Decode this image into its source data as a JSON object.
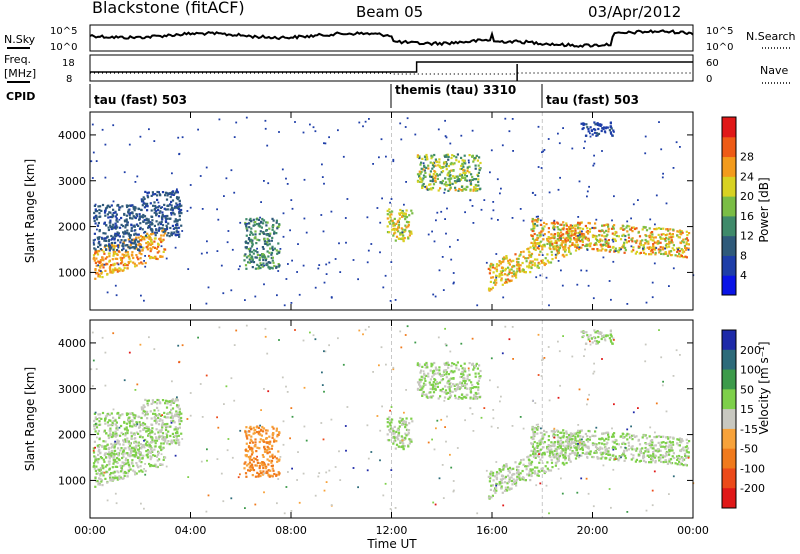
{
  "header": {
    "radar_title": "Blackstone (fitACF)",
    "beam_title": "Beam 05",
    "date_title": "03/Apr/2012"
  },
  "left_labels": {
    "nsky": "N.Sky",
    "freq": "Freq.",
    "freq_unit": "[MHz]",
    "cpid": "CPID"
  },
  "right_labels": {
    "nsearch": "N.Search",
    "nave": "Nave"
  },
  "noise_axis": {
    "left_ticks": [
      "10^5",
      "10^0"
    ],
    "right_ticks": [
      "10^5",
      "10^0"
    ]
  },
  "freq_axis": {
    "left_ticks": [
      "18",
      "8"
    ],
    "right_ticks": [
      "60",
      "0"
    ]
  },
  "cpid_segments": [
    {
      "label": "tau (fast) 503",
      "start": 0.0,
      "end": 12.0
    },
    {
      "label": "themis (tau) 3310",
      "start": 12.0,
      "end": 18.0
    },
    {
      "label": "tau (fast) 503",
      "start": 18.0,
      "end": 24.0
    }
  ],
  "power_colorbar": {
    "label": "Power [dB]",
    "ticks": [
      "4",
      "8",
      "12",
      "16",
      "20",
      "24",
      "28"
    ],
    "colors": [
      "#0a14e6",
      "#1e3ea8",
      "#2f5a7a",
      "#3f8a6a",
      "#7abd45",
      "#d8d222",
      "#f39b1c",
      "#ee5b16",
      "#e01818"
    ]
  },
  "velocity_colorbar": {
    "label": "Velocity [m s⁻¹]",
    "ticks": [
      "200",
      "100",
      "50",
      "15",
      "-15",
      "-50",
      "-100",
      "-200"
    ],
    "colors": [
      "#1e2aa8",
      "#2d6b7a",
      "#3c9a4a",
      "#7ed04a",
      "#c8c8c0",
      "#f7a23a",
      "#f07a1c",
      "#ec4a1a",
      "#e01818"
    ]
  },
  "chart_data": {
    "type": "heatmap",
    "title": "Blackstone (fitACF)   Beam 05   03/Apr/2012",
    "xlabel": "Time UT",
    "ylabel": "Slant Range [km]",
    "x_ticks": [
      "00:00",
      "04:00",
      "08:00",
      "12:00",
      "16:00",
      "20:00",
      "00:00"
    ],
    "y_ticks": [
      "1000",
      "2000",
      "3000",
      "4000"
    ],
    "xlim": [
      0,
      24
    ],
    "ylim": [
      180,
      4500
    ],
    "panels": [
      "Power [dB]",
      "Velocity [m s⁻¹]"
    ],
    "mode_change_times": [
      12.0,
      18.0
    ],
    "scatter_regions": [
      {
        "t0": 0.1,
        "t1": 3.0,
        "r0": 850,
        "r1": 1500,
        "slope": 180,
        "power": [
          20,
          26
        ],
        "velocity": [
          -15,
          15
        ]
      },
      {
        "t0": 0.1,
        "t1": 2.0,
        "r0": 1500,
        "r1": 2500,
        "slope": 0,
        "power": [
          6,
          10
        ],
        "velocity": [
          -15,
          15
        ]
      },
      {
        "t0": 2.0,
        "t1": 3.6,
        "r0": 1800,
        "r1": 2800,
        "slope": 0,
        "power": [
          6,
          10
        ],
        "velocity": [
          -15,
          15
        ]
      },
      {
        "t0": 6.1,
        "t1": 7.5,
        "r0": 1100,
        "r1": 2200,
        "slope": 0,
        "power": [
          8,
          16
        ],
        "velocity": [
          -100,
          -50
        ]
      },
      {
        "t0": 11.8,
        "t1": 12.8,
        "r0": 1700,
        "r1": 2400,
        "slope": 0,
        "power": [
          14,
          24
        ],
        "velocity": [
          -15,
          15
        ]
      },
      {
        "t0": 13.0,
        "t1": 15.5,
        "r0": 2800,
        "r1": 3600,
        "slope": 0,
        "power": [
          10,
          22
        ],
        "velocity": [
          -15,
          15
        ]
      },
      {
        "t0": 15.8,
        "t1": 19.5,
        "r0": 600,
        "r1": 1200,
        "slope": 250,
        "power": [
          16,
          26
        ],
        "velocity": [
          -15,
          15
        ]
      },
      {
        "t0": 17.5,
        "t1": 23.8,
        "r0": 1600,
        "r1": 2200,
        "slope": -40,
        "power": [
          14,
          28
        ],
        "velocity": [
          -15,
          15
        ]
      },
      {
        "t0": 19.5,
        "t1": 20.8,
        "r0": 4000,
        "r1": 4300,
        "slope": 0,
        "power": [
          4,
          8
        ],
        "velocity": [
          -15,
          15
        ]
      }
    ]
  }
}
